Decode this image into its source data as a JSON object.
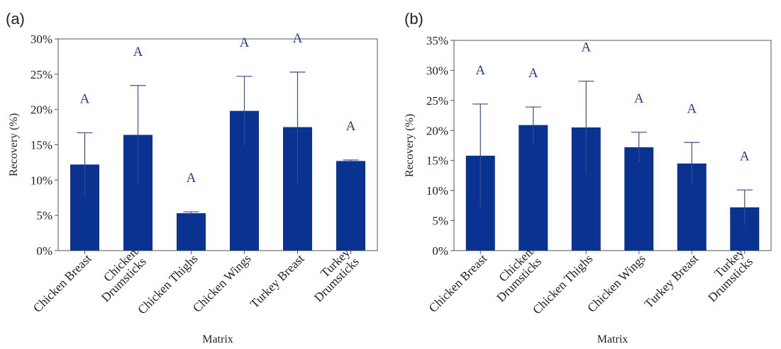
{
  "colors": {
    "bar": "#0a3291",
    "letters": "#1f3f8c",
    "axis": "#555555",
    "error_bar": "#3a4f86"
  },
  "chart_data": [
    {
      "panel_label": "(a)",
      "type": "bar",
      "xlabel": "Matrix",
      "ylabel": "Recovery (%)",
      "ylim": [
        0,
        30
      ],
      "yticks": [
        0,
        5,
        10,
        15,
        20,
        25,
        30
      ],
      "ytick_labels": [
        "0%",
        "5%",
        "10%",
        "15%",
        "20%",
        "25%",
        "30%"
      ],
      "grid": false,
      "categories": [
        [
          "Chicken Breast"
        ],
        [
          "Chicken",
          "Drumsticks"
        ],
        [
          "Chicken Thighs"
        ],
        [
          "Chicken Wings"
        ],
        [
          "Turkey Breast"
        ],
        [
          "Turkey",
          "Drumsticks"
        ]
      ],
      "values": [
        12.2,
        16.4,
        5.3,
        19.8,
        17.5,
        12.7
      ],
      "error": [
        4.5,
        7.0,
        0.2,
        4.9,
        7.8,
        0.15
      ],
      "significance": [
        "A",
        "A",
        "A",
        "A",
        "A",
        "A"
      ]
    },
    {
      "panel_label": "(b)",
      "type": "bar",
      "xlabel": "Matrix",
      "ylabel": "Recovery (%)",
      "ylim": [
        0,
        35
      ],
      "yticks": [
        0,
        5,
        10,
        15,
        20,
        25,
        30,
        35
      ],
      "ytick_labels": [
        "0%",
        "5%",
        "10%",
        "15%",
        "20%",
        "25%",
        "30%",
        "35%"
      ],
      "grid": false,
      "categories": [
        [
          "Chicken Breast"
        ],
        [
          "Chicken",
          "Drumsticks"
        ],
        [
          "Chicken Thighs"
        ],
        [
          "Chicken Wings"
        ],
        [
          "Turkey Breast"
        ],
        [
          "Turkey",
          "Drumsticks"
        ]
      ],
      "values": [
        15.8,
        20.9,
        20.5,
        17.2,
        14.5,
        7.2
      ],
      "error": [
        8.6,
        3.0,
        7.7,
        2.5,
        3.5,
        2.9
      ],
      "significance": [
        "A",
        "A",
        "A",
        "A",
        "A",
        "A"
      ]
    }
  ]
}
